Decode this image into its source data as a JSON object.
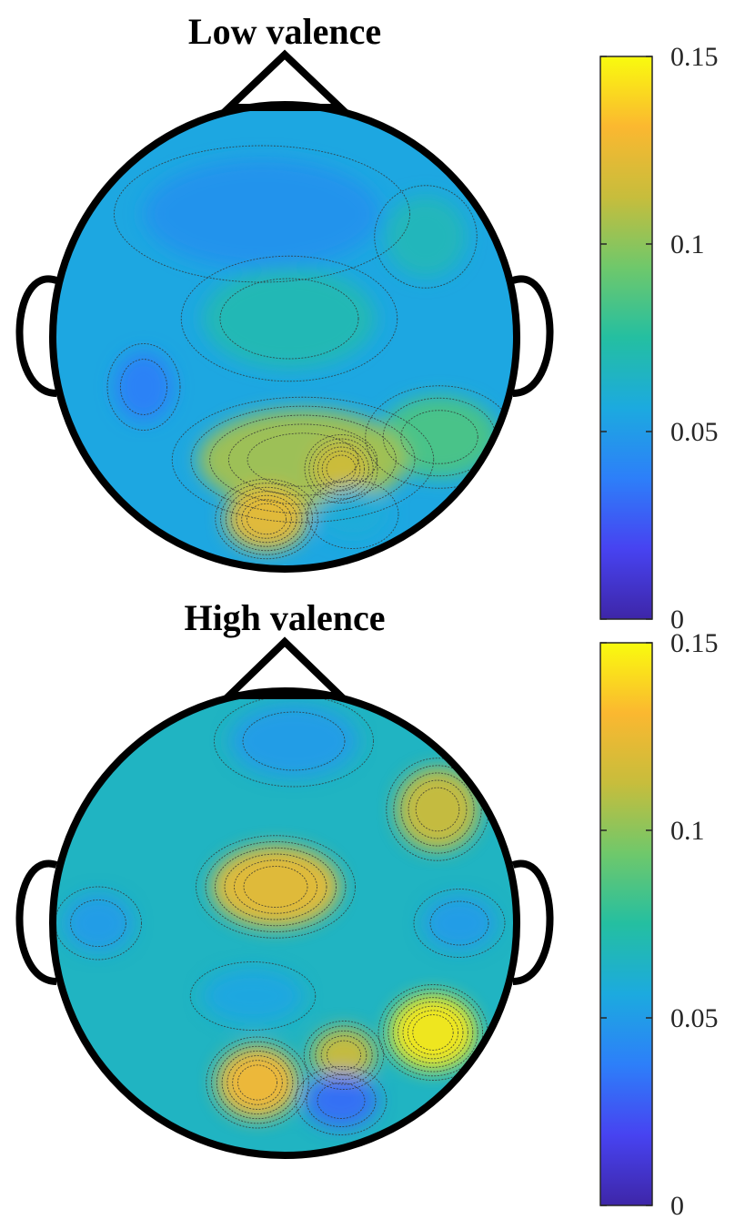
{
  "chart_data": {
    "type": "heatmap",
    "description_kind": "scalp topographic map",
    "colormap": "parula",
    "colormap_stops": [
      "#3e26a8",
      "#4743f1",
      "#2d7ff9",
      "#1caadf",
      "#24bfa1",
      "#6fc86b",
      "#c7bd3c",
      "#fbb830",
      "#f9fb0e"
    ],
    "color_range": [
      0,
      0.15
    ],
    "panels": [
      {
        "title": "Low valence",
        "base_value": 0.055,
        "colorbar": {
          "min": 0,
          "max": 0.15,
          "ticks": [
            0,
            0.05,
            0.1,
            0.15
          ],
          "tick_labels": [
            "0",
            "0.05",
            "0.1",
            "0.15"
          ]
        },
        "regions": [
          {
            "value": 0.046,
            "location": "frontal"
          },
          {
            "value": 0.07,
            "location": "central"
          },
          {
            "value": 0.038,
            "location": "left temporal"
          },
          {
            "value": 0.068,
            "location": "right frontal"
          },
          {
            "value": 0.085,
            "location": "right parietal"
          },
          {
            "value": 0.105,
            "location": "parietal"
          },
          {
            "value": 0.125,
            "location": "left occipital"
          },
          {
            "value": 0.115,
            "location": "occipital"
          },
          {
            "value": 0.058,
            "location": "right occipital"
          }
        ]
      },
      {
        "title": "High valence",
        "base_value": 0.065,
        "colorbar": {
          "min": 0,
          "max": 0.15,
          "ticks": [
            0,
            0.05,
            0.1,
            0.15
          ],
          "tick_labels": [
            "0",
            "0.05",
            "0.1",
            "0.15"
          ]
        },
        "regions": [
          {
            "value": 0.05,
            "location": "frontal"
          },
          {
            "value": 0.115,
            "location": "right frontal"
          },
          {
            "value": 0.125,
            "location": "central"
          },
          {
            "value": 0.05,
            "location": "left temporal"
          },
          {
            "value": 0.05,
            "location": "right temporal"
          },
          {
            "value": 0.055,
            "location": "centro-parietal"
          },
          {
            "value": 0.145,
            "location": "right parietal"
          },
          {
            "value": 0.13,
            "location": "left occipital"
          },
          {
            "value": 0.115,
            "location": "parietal"
          },
          {
            "value": 0.032,
            "location": "occipital"
          }
        ]
      }
    ]
  }
}
